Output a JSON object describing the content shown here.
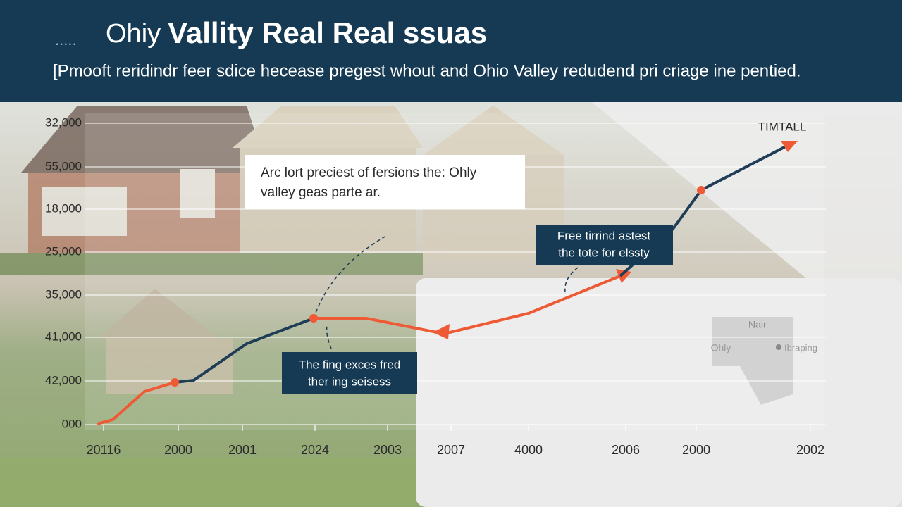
{
  "header": {
    "dots": ".....",
    "title_light": "Ohiy",
    "title_bold": "Vallity Real Real ssuas",
    "subtitle": "[Pmooft reridindr feer sdice hecease pregest whout and Ohio Valley redudend pri criage ine pentied."
  },
  "axis": {
    "y_labels": [
      "32,000",
      "55,000",
      "18,000",
      "25,000",
      "35,000",
      "41,000",
      "42,000",
      "000"
    ],
    "x_labels": [
      "20116",
      "2000",
      "2001",
      "2024",
      "2003",
      "2007",
      "4000",
      "2006",
      "2000",
      "2002"
    ]
  },
  "legend_label": "TIMTALL",
  "callouts": [
    {
      "lines": [
        "Arc lort preciest of fersions the: Ohly",
        "valley geas parte ar."
      ]
    },
    {
      "lines": [
        "Free tirrind astest",
        "the tote for elssty"
      ]
    },
    {
      "lines": [
        "The fing exces fred",
        "ther ing seisess"
      ]
    }
  ],
  "map": {
    "title": "Nair",
    "left": "Ohly",
    "right": "Ibraping"
  }
}
